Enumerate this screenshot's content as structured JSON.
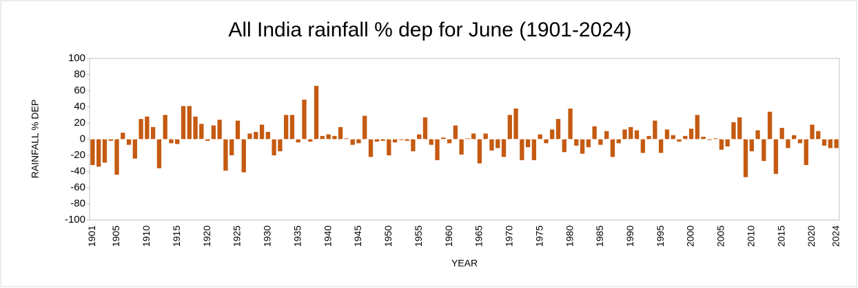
{
  "chart_data": {
    "type": "bar",
    "title": "All India rainfall % dep for June (1901-2024)",
    "x_label": "YEAR",
    "y_label": "RAINFALL % DEP",
    "color": "#c55a11",
    "grid": false,
    "ylim": [
      -100,
      100
    ],
    "yticks": [
      -100,
      -80,
      -60,
      -40,
      -20,
      0,
      20,
      40,
      60,
      80,
      100
    ],
    "categories": [
      "1901",
      null,
      null,
      null,
      "1905",
      null,
      null,
      null,
      null,
      "1910",
      null,
      null,
      null,
      null,
      "1915",
      null,
      null,
      null,
      null,
      "1920",
      null,
      null,
      null,
      null,
      "1925",
      null,
      null,
      null,
      null,
      "1930",
      null,
      null,
      null,
      null,
      "1935",
      null,
      null,
      null,
      null,
      "1940",
      null,
      null,
      null,
      null,
      "1945",
      null,
      null,
      null,
      null,
      "1950",
      null,
      null,
      null,
      null,
      "1955",
      null,
      null,
      null,
      null,
      "1960",
      null,
      null,
      null,
      null,
      "1965",
      null,
      null,
      null,
      null,
      "1970",
      null,
      null,
      null,
      null,
      "1975",
      null,
      null,
      null,
      null,
      "1980",
      null,
      null,
      null,
      null,
      "1985",
      null,
      null,
      null,
      null,
      "1990",
      null,
      null,
      null,
      null,
      "1995",
      null,
      null,
      null,
      null,
      "2000",
      null,
      null,
      null,
      null,
      "2005",
      null,
      null,
      null,
      null,
      "2010",
      null,
      null,
      null,
      null,
      "2015",
      null,
      null,
      null,
      null,
      "2020",
      null,
      null,
      null,
      "2024"
    ],
    "values": [
      -32,
      -34,
      -29,
      -2,
      -44,
      8,
      -7,
      -24,
      25,
      28,
      15,
      -36,
      30,
      -5,
      -6,
      41,
      41,
      28,
      19,
      -2,
      17,
      24,
      -39,
      -20,
      23,
      -41,
      7,
      9,
      18,
      9,
      -20,
      -15,
      30,
      30,
      -4,
      49,
      -3,
      66,
      4,
      6,
      4,
      15,
      1,
      -7,
      -5,
      29,
      -22,
      -3,
      -2,
      -20,
      -4,
      -1,
      -2,
      -15,
      6,
      27,
      -7,
      -26,
      2,
      -5,
      17,
      -19,
      1,
      7,
      -30,
      7,
      -14,
      -11,
      -22,
      30,
      38,
      -26,
      -10,
      -26,
      6,
      -5,
      12,
      25,
      -16,
      38,
      -8,
      -18,
      -10,
      16,
      -7,
      10,
      -22,
      -5,
      12,
      15,
      11,
      -17,
      4,
      23,
      -17,
      12,
      5,
      -3,
      4,
      13,
      30,
      3,
      -1,
      1,
      -13,
      -9,
      21,
      27,
      -47,
      -15,
      11,
      -27,
      34,
      -43,
      14,
      -11,
      5,
      -5,
      -32,
      18,
      10,
      -8,
      -11,
      -11
    ]
  }
}
